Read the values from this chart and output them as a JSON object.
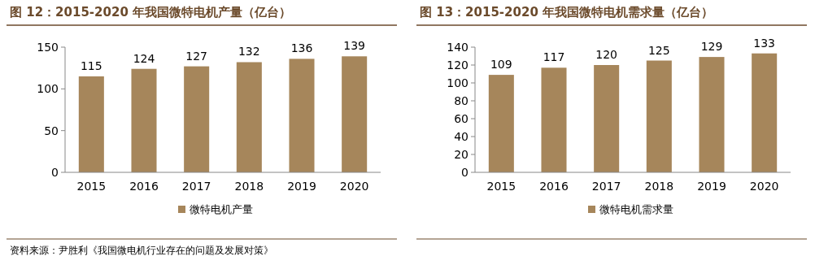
{
  "chart_data": [
    {
      "type": "bar",
      "title": "图 12：2015-2020 年我国微特电机产量（亿台）",
      "categories": [
        "2015",
        "2016",
        "2017",
        "2018",
        "2019",
        "2020"
      ],
      "series": [
        {
          "name": "微特电机产量",
          "color": "#a6865b",
          "values": [
            115,
            124,
            127,
            132,
            136,
            139
          ]
        }
      ],
      "ylim": [
        0,
        150
      ],
      "yticks": [
        0,
        50,
        100,
        150
      ],
      "data_labels": true,
      "legend": "bottom",
      "annotations": [
        "资料来源：尹胜利《我国微电机行业存在的问题及发展对策》"
      ]
    },
    {
      "type": "bar",
      "title": "图 13：2015-2020 年我国微特电机需求量（亿台）",
      "categories": [
        "2015",
        "2016",
        "2017",
        "2018",
        "2019",
        "2020"
      ],
      "series": [
        {
          "name": "微特电机需求量",
          "color": "#a6865b",
          "values": [
            109,
            117,
            120,
            125,
            129,
            133
          ]
        }
      ],
      "ylim": [
        0,
        140
      ],
      "yticks": [
        0,
        20,
        40,
        60,
        80,
        100,
        120,
        140
      ],
      "data_labels": true,
      "legend": "bottom"
    }
  ]
}
